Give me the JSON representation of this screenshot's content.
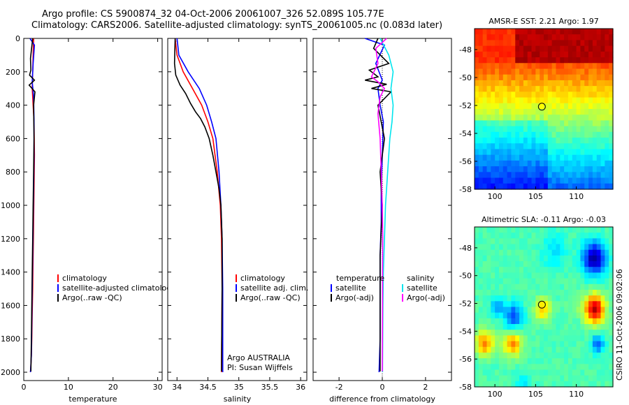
{
  "header": {
    "line1": "Argo profile: CS 5900874_32 04-Oct-2006 20061007_326 52.089S 105.77E",
    "line2": "Climatology: CARS2006. Satellite-adjusted climatology: synTS_20061005.nc (0.083d later)"
  },
  "footer_vertical": "CSIRO 11-Oct-2006 09:02:06",
  "chart_data": [
    {
      "id": "temperature",
      "type": "line",
      "xlabel": "temperature",
      "ylabel": "",
      "xlim": [
        0,
        31
      ],
      "ylim": [
        2050,
        0
      ],
      "xticks": [
        0,
        10,
        20,
        30
      ],
      "yticks": [
        0,
        200,
        400,
        600,
        800,
        1000,
        1200,
        1400,
        1600,
        1800,
        2000
      ],
      "legend": [
        "climatology",
        "satellite-adjusted climatology",
        "Argo(..raw -QC)"
      ],
      "series": [
        {
          "name": "climatology",
          "color": "#ff0000",
          "x": [
            2.2,
            2.1,
            2.0,
            1.9,
            2.1,
            2.3,
            2.4,
            2.3,
            2.2,
            2.1,
            2.0,
            1.9,
            1.8,
            1.7,
            1.6,
            1.5
          ],
          "y": [
            0,
            100,
            200,
            300,
            400,
            500,
            700,
            900,
            1100,
            1300,
            1500,
            1650,
            1800,
            1900,
            1960,
            2000
          ]
        },
        {
          "name": "satellite-adjusted climatology",
          "color": "#0000ff",
          "x": [
            1.4,
            2.4,
            2.1,
            1.9,
            2.2,
            2.3,
            2.3,
            2.2,
            2.1,
            2.0,
            1.9,
            1.8,
            1.7,
            1.5
          ],
          "y": [
            0,
            40,
            150,
            260,
            350,
            500,
            700,
            900,
            1100,
            1300,
            1500,
            1700,
            1900,
            2000
          ]
        },
        {
          "name": "Argo(..raw -QC)",
          "color": "#000000",
          "x": [
            2.0,
            1.5,
            1.6,
            1.3,
            2.4,
            1.2,
            2.5,
            2.2,
            2.3,
            2.2,
            2.1,
            2.0,
            1.9,
            1.8,
            1.7,
            1.6
          ],
          "y": [
            0,
            120,
            190,
            220,
            250,
            280,
            320,
            400,
            600,
            800,
            1000,
            1200,
            1400,
            1600,
            1800,
            1995
          ]
        }
      ]
    },
    {
      "id": "salinity",
      "type": "line",
      "xlabel": "salinity",
      "ylabel": "",
      "xlim": [
        33.85,
        36.1
      ],
      "ylim": [
        2050,
        0
      ],
      "xticks": [
        34,
        34.5,
        35,
        35.5,
        36
      ],
      "legend": [
        "climatology",
        "satellite adj. clim.",
        "Argo(..raw -QC)"
      ],
      "annotation": [
        "Argo AUSTRALIA",
        "PI: Susan Wijffels"
      ],
      "series": [
        {
          "name": "climatology",
          "color": "#ff0000",
          "x": [
            33.97,
            34.0,
            34.1,
            34.25,
            34.4,
            34.5,
            34.58,
            34.65,
            34.7,
            34.72,
            34.73,
            34.72
          ],
          "y": [
            0,
            100,
            200,
            300,
            400,
            500,
            600,
            800,
            1000,
            1200,
            1500,
            2000
          ]
        },
        {
          "name": "satellite adj. clim.",
          "color": "#0000ff",
          "x": [
            34.0,
            34.03,
            34.18,
            34.36,
            34.48,
            34.56,
            34.63,
            34.68,
            34.71,
            34.73,
            34.74,
            34.74
          ],
          "y": [
            0,
            100,
            200,
            300,
            400,
            500,
            600,
            800,
            1000,
            1200,
            1500,
            2000
          ]
        },
        {
          "name": "Argo(..raw -QC)",
          "color": "#000000",
          "x": [
            33.97,
            33.96,
            33.98,
            34.05,
            34.14,
            34.22,
            34.3,
            34.38,
            34.45,
            34.52,
            34.58,
            34.63,
            34.68,
            34.71,
            34.73,
            34.73,
            34.72
          ],
          "y": [
            0,
            150,
            220,
            280,
            330,
            390,
            440,
            480,
            530,
            600,
            700,
            800,
            900,
            1000,
            1200,
            1500,
            1995
          ]
        }
      ]
    },
    {
      "id": "difference",
      "type": "line",
      "xlabel": "difference from climatology",
      "ylabel": "",
      "xlim": [
        -3.2,
        3.2
      ],
      "ylim": [
        2050,
        0
      ],
      "xticks": [
        -2,
        0,
        2
      ],
      "legend_left": {
        "title": "temperature",
        "items": [
          "satellite",
          "Argo(-adj)"
        ]
      },
      "legend_right": {
        "title": "salinity",
        "items": [
          "satellite",
          "Argo(-adj)"
        ]
      },
      "series": [
        {
          "name": "temperature satellite",
          "color": "#0000ff",
          "x": [
            -0.8,
            0.1,
            -0.3,
            0.0,
            -0.2,
            -0.1,
            0.05,
            0.0,
            -0.05,
            -0.05,
            -0.1,
            -0.1,
            -0.1,
            -0.15
          ],
          "y": [
            0,
            40,
            150,
            250,
            300,
            400,
            500,
            700,
            900,
            1100,
            1300,
            1500,
            1800,
            2000
          ]
        },
        {
          "name": "temperature Argo(-adj)",
          "color": "#000000",
          "x": [
            -0.2,
            -0.4,
            0.3,
            -0.6,
            -0.2,
            -0.8,
            0.2,
            -0.5,
            0.4,
            -0.2,
            0.1,
            -0.1,
            0.0,
            -0.1,
            -0.1,
            -0.1
          ],
          "y": [
            0,
            60,
            150,
            190,
            230,
            250,
            275,
            300,
            320,
            400,
            600,
            800,
            1000,
            1300,
            1600,
            1995
          ]
        },
        {
          "name": "salinity satellite",
          "color": "#00e5ee",
          "x": [
            -0.1,
            0.3,
            0.5,
            0.4,
            0.5,
            0.45,
            0.35,
            0.25,
            0.15,
            0.1,
            0.05,
            0.03,
            0.02,
            0.01
          ],
          "y": [
            0,
            100,
            200,
            300,
            400,
            500,
            600,
            800,
            1000,
            1200,
            1400,
            1600,
            1800,
            2000
          ]
        },
        {
          "name": "salinity Argo(-adj)",
          "color": "#ff00ff",
          "x": [
            0.2,
            -0.3,
            -0.2,
            -0.5,
            -0.2,
            0.1,
            -0.1,
            -0.2,
            -0.1,
            -0.05,
            0.0,
            0.02,
            0.01,
            0.01,
            0.0
          ],
          "y": [
            0,
            60,
            150,
            230,
            260,
            300,
            350,
            450,
            600,
            800,
            1000,
            1200,
            1400,
            1600,
            1995
          ]
        }
      ]
    },
    {
      "id": "amsr-sst",
      "type": "heatmap",
      "title": "AMSR-E SST: 2.21 Argo: 1.97",
      "xlim": [
        97.5,
        114.5
      ],
      "ylim": [
        -58,
        -46.5
      ],
      "xticks": [
        100,
        105,
        110
      ],
      "yticks": [
        -48,
        -50,
        -52,
        -54,
        -56,
        -58
      ],
      "marker": {
        "lon": 105.77,
        "lat": -52.089
      }
    },
    {
      "id": "altimetric-sla",
      "type": "heatmap",
      "title": "Altimetric SLA: -0.11 Argo: -0.03",
      "xlim": [
        97.5,
        114.5
      ],
      "ylim": [
        -58,
        -46.5
      ],
      "xticks": [
        100,
        105,
        110
      ],
      "yticks": [
        -48,
        -50,
        -52,
        -54,
        -56,
        -58
      ],
      "marker": {
        "lon": 105.77,
        "lat": -52.089
      }
    }
  ]
}
